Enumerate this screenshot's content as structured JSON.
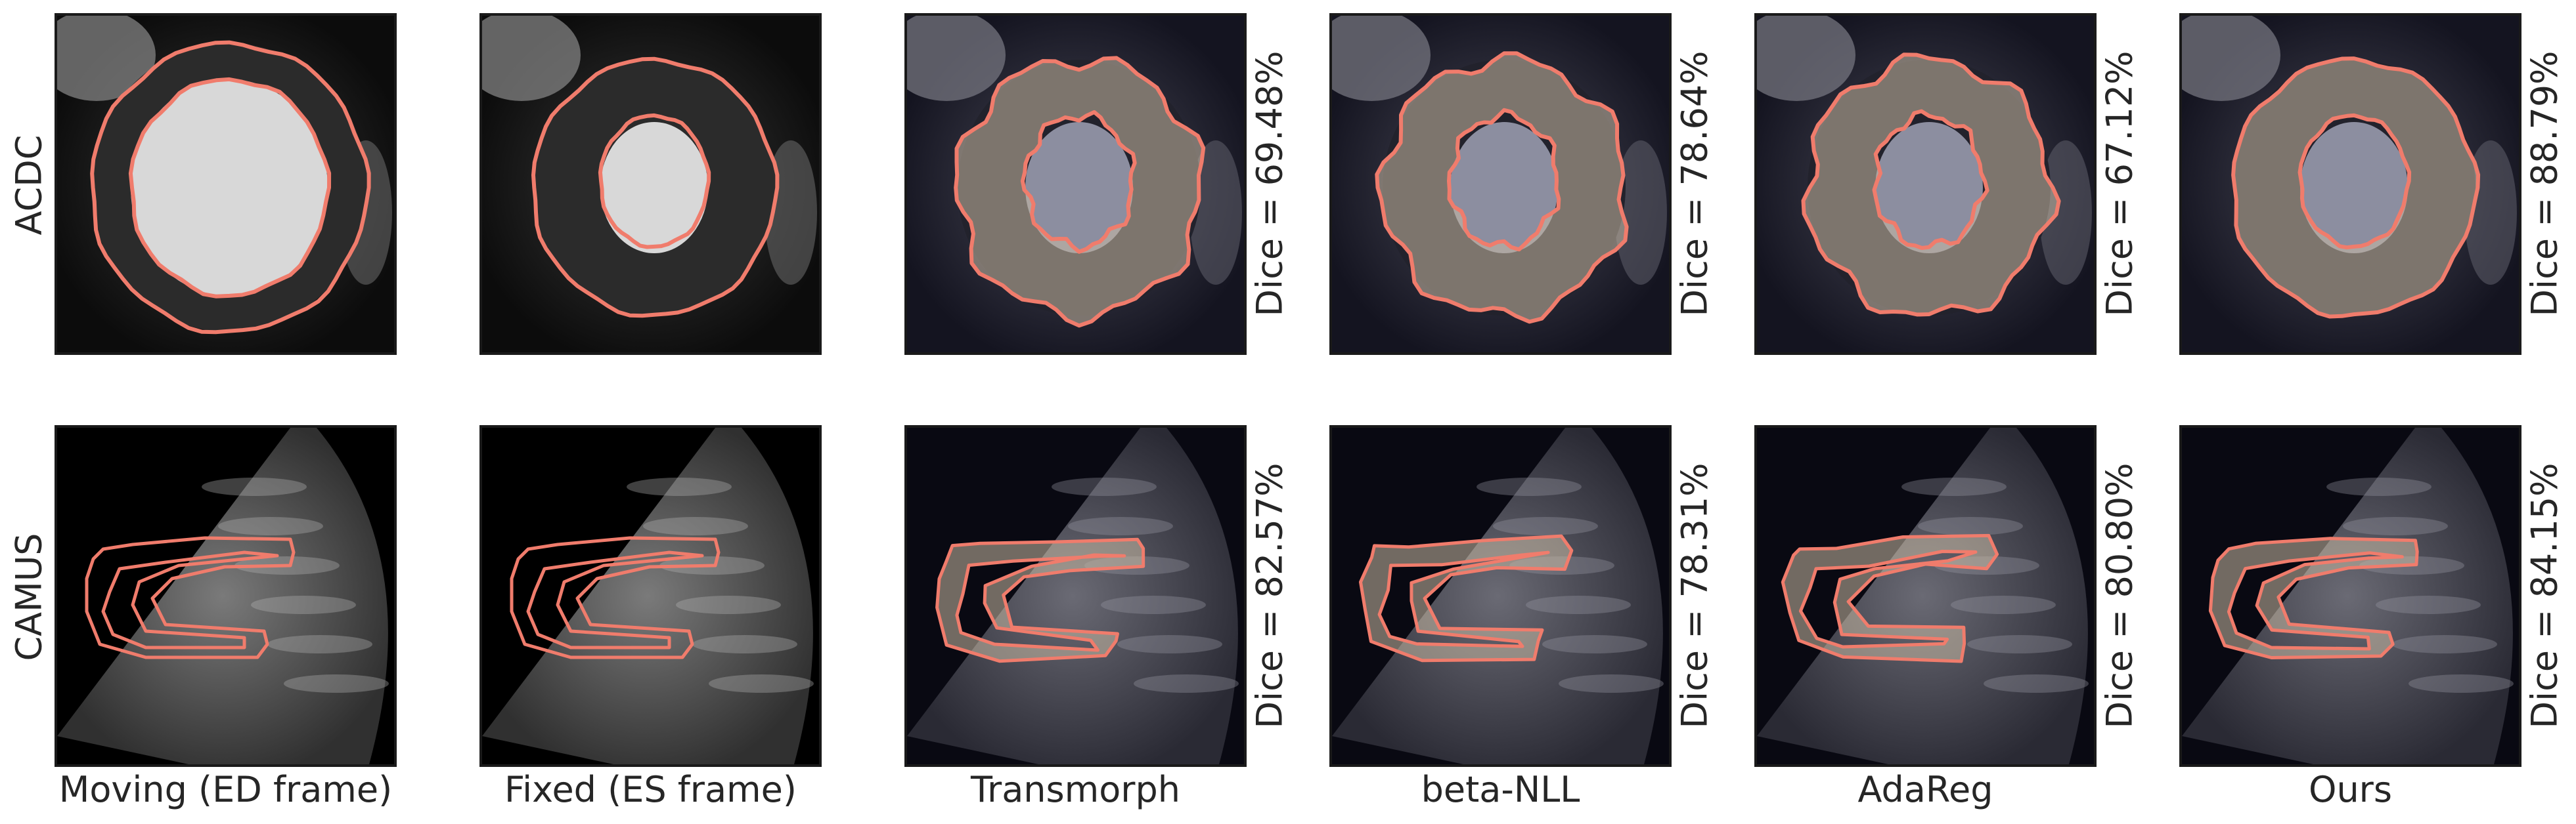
{
  "figure": {
    "rows": [
      {
        "label": "ACDC",
        "kind": "mri"
      },
      {
        "label": "CAMUS",
        "kind": "echo"
      }
    ],
    "columns": [
      {
        "label": "Moving (ED frame)"
      },
      {
        "label": "Fixed (ES frame)"
      },
      {
        "label": "Transmorph"
      },
      {
        "label": "beta-NLL"
      },
      {
        "label": "AdaReg"
      },
      {
        "label": "Ours"
      }
    ],
    "dice": {
      "ACDC": [
        "Dice = 69.48%",
        "Dice = 78.64%",
        "Dice = 67.12%",
        "Dice = 88.79%"
      ],
      "CAMUS": [
        "Dice = 82.57%",
        "Dice = 78.31%",
        "Dice = 80.80%",
        "Dice = 84.15%"
      ]
    },
    "colors": {
      "contour": "#f07c6c",
      "fill": "#c9b9a4",
      "frame": "#1a1a1a"
    }
  }
}
